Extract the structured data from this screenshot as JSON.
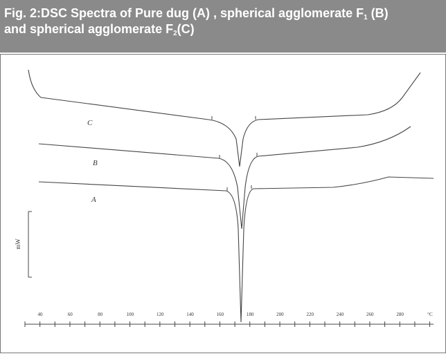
{
  "figure": {
    "caption": {
      "line1": [
        "Fig. 2:DSC Spectra of Pure dug (A) , spherical agglomerate F",
        "1",
        " (B)"
      ],
      "line2": [
        "and spherical agglomerate F",
        "2",
        "(C)"
      ]
    },
    "curve_labels": [
      "C",
      "B",
      "A"
    ],
    "scale_label": "mW",
    "axis_ticks": [
      "40",
      "60",
      "80",
      "100",
      "120",
      "140",
      "160",
      "180",
      "200",
      "220",
      "240",
      "260",
      "280",
      "°C"
    ]
  }
}
